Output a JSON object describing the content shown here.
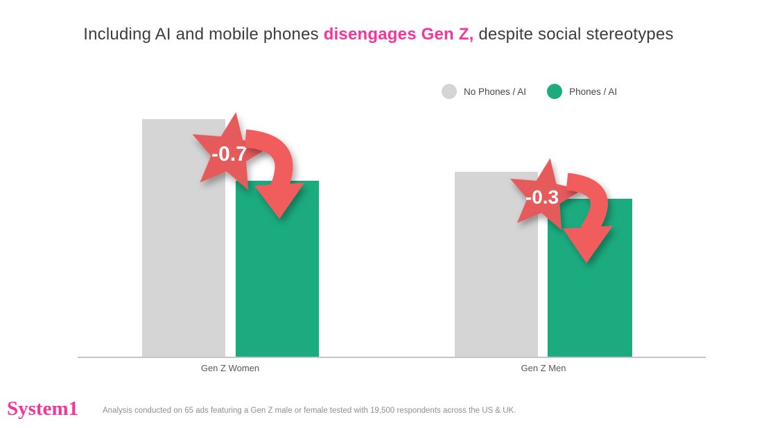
{
  "title": {
    "prefix": "Including AI and mobile phones",
    "highlight": "disengages Gen Z,",
    "suffix": "despite social stereotypes"
  },
  "legend": {
    "items": [
      {
        "label": "No Phones / AI",
        "color": "#D5D5D5"
      },
      {
        "label": "Phones / AI",
        "color": "#1BAB7E"
      }
    ]
  },
  "chart_data": {
    "type": "bar",
    "title": "Including AI and mobile phones disengages Gen Z, despite social stereotypes",
    "categories": [
      "Gen Z Women",
      "Gen Z Men"
    ],
    "series": [
      {
        "name": "No Phones / AI",
        "color": "#D5D5D5",
        "values": [
          2.7,
          2.1
        ]
      },
      {
        "name": "Phones / AI",
        "color": "#1BAB7E",
        "values": [
          2.0,
          1.8
        ]
      }
    ],
    "annotations": [
      {
        "category": "Gen Z Women",
        "label": "-0.7",
        "value": -0.7
      },
      {
        "category": "Gen Z Men",
        "label": "-0.3",
        "value": -0.3
      }
    ],
    "xlabel": "",
    "ylabel": "",
    "ylim": [
      0,
      3.2
    ],
    "y_axis_hidden": true,
    "grid": false,
    "legend_position": "top-right",
    "note": "Only the -0.7 and -0.3 deltas are labeled in the image; bar values estimated from bar heights."
  },
  "colors": {
    "brand_pink": "#F5359E",
    "annotation_red": "#E55A5A",
    "arrow_red": "#F15D5D",
    "bar_gray": "#D5D5D5",
    "bar_green": "#1BAB7E",
    "star_label_white": "#FFFFFF",
    "title_text": "#3D3D3D"
  },
  "footer": {
    "logo": "System1",
    "note": "Analysis conducted on 65 ads featuring a Gen Z male or female tested with 19,500 respondents across the US & UK."
  }
}
